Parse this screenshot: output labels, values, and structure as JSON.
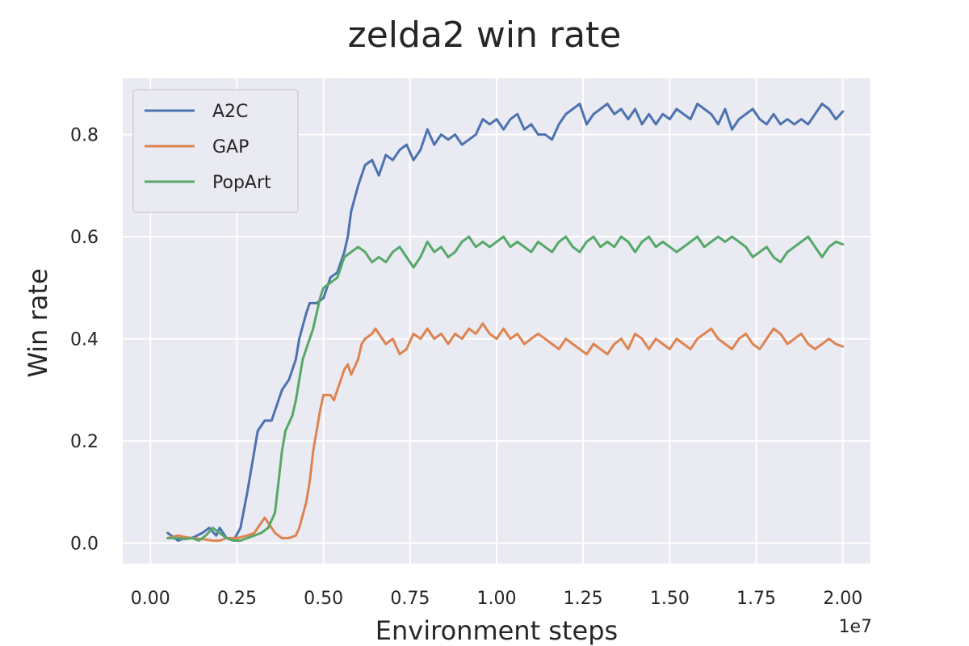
{
  "chart_data": {
    "type": "line",
    "title": "zelda2 win rate",
    "xlabel": "Environment steps",
    "ylabel": "Win rate",
    "x_offset_label": "1e7",
    "xlim": [
      -0.08,
      2.08
    ],
    "ylim": [
      -0.04,
      0.91
    ],
    "x_ticks": [
      0.0,
      0.25,
      0.5,
      0.75,
      1.0,
      1.25,
      1.5,
      1.75,
      2.0
    ],
    "x_tick_labels": [
      "0.00",
      "0.25",
      "0.50",
      "0.75",
      "1.00",
      "1.25",
      "1.50",
      "1.75",
      "2.00"
    ],
    "y_ticks": [
      0.0,
      0.2,
      0.4,
      0.6,
      0.8
    ],
    "y_tick_labels": [
      "0.0",
      "0.2",
      "0.4",
      "0.6",
      "0.8"
    ],
    "grid": true,
    "legend_position": "top-left",
    "background_color": "#eaeaf2",
    "series": [
      {
        "name": "A2C",
        "color": "#4c72b0",
        "points": [
          [
            0.05,
            0.02
          ],
          [
            0.08,
            0.005
          ],
          [
            0.1,
            0.01
          ],
          [
            0.12,
            0.01
          ],
          [
            0.15,
            0.02
          ],
          [
            0.17,
            0.03
          ],
          [
            0.19,
            0.015
          ],
          [
            0.2,
            0.03
          ],
          [
            0.22,
            0.01
          ],
          [
            0.24,
            0.005
          ],
          [
            0.26,
            0.03
          ],
          [
            0.28,
            0.1
          ],
          [
            0.3,
            0.18
          ],
          [
            0.31,
            0.22
          ],
          [
            0.33,
            0.24
          ],
          [
            0.35,
            0.24
          ],
          [
            0.37,
            0.28
          ],
          [
            0.38,
            0.3
          ],
          [
            0.4,
            0.32
          ],
          [
            0.42,
            0.36
          ],
          [
            0.43,
            0.4
          ],
          [
            0.45,
            0.45
          ],
          [
            0.46,
            0.47
          ],
          [
            0.48,
            0.47
          ],
          [
            0.5,
            0.48
          ],
          [
            0.51,
            0.5
          ],
          [
            0.52,
            0.52
          ],
          [
            0.54,
            0.53
          ],
          [
            0.55,
            0.55
          ],
          [
            0.56,
            0.57
          ],
          [
            0.57,
            0.6
          ],
          [
            0.58,
            0.65
          ],
          [
            0.6,
            0.7
          ],
          [
            0.62,
            0.74
          ],
          [
            0.64,
            0.75
          ],
          [
            0.66,
            0.72
          ],
          [
            0.68,
            0.76
          ],
          [
            0.7,
            0.75
          ],
          [
            0.72,
            0.77
          ],
          [
            0.74,
            0.78
          ],
          [
            0.76,
            0.75
          ],
          [
            0.78,
            0.77
          ],
          [
            0.8,
            0.81
          ],
          [
            0.82,
            0.78
          ],
          [
            0.84,
            0.8
          ],
          [
            0.86,
            0.79
          ],
          [
            0.88,
            0.8
          ],
          [
            0.9,
            0.78
          ],
          [
            0.92,
            0.79
          ],
          [
            0.94,
            0.8
          ],
          [
            0.96,
            0.83
          ],
          [
            0.98,
            0.82
          ],
          [
            1.0,
            0.83
          ],
          [
            1.02,
            0.81
          ],
          [
            1.04,
            0.83
          ],
          [
            1.06,
            0.84
          ],
          [
            1.08,
            0.81
          ],
          [
            1.1,
            0.82
          ],
          [
            1.12,
            0.8
          ],
          [
            1.14,
            0.8
          ],
          [
            1.16,
            0.79
          ],
          [
            1.18,
            0.82
          ],
          [
            1.2,
            0.84
          ],
          [
            1.22,
            0.85
          ],
          [
            1.24,
            0.86
          ],
          [
            1.26,
            0.82
          ],
          [
            1.28,
            0.84
          ],
          [
            1.3,
            0.85
          ],
          [
            1.32,
            0.86
          ],
          [
            1.34,
            0.84
          ],
          [
            1.36,
            0.85
          ],
          [
            1.38,
            0.83
          ],
          [
            1.4,
            0.85
          ],
          [
            1.42,
            0.82
          ],
          [
            1.44,
            0.84
          ],
          [
            1.46,
            0.82
          ],
          [
            1.48,
            0.84
          ],
          [
            1.5,
            0.83
          ],
          [
            1.52,
            0.85
          ],
          [
            1.54,
            0.84
          ],
          [
            1.56,
            0.83
          ],
          [
            1.58,
            0.86
          ],
          [
            1.6,
            0.85
          ],
          [
            1.62,
            0.84
          ],
          [
            1.64,
            0.82
          ],
          [
            1.66,
            0.85
          ],
          [
            1.68,
            0.81
          ],
          [
            1.7,
            0.83
          ],
          [
            1.72,
            0.84
          ],
          [
            1.74,
            0.85
          ],
          [
            1.76,
            0.83
          ],
          [
            1.78,
            0.82
          ],
          [
            1.8,
            0.84
          ],
          [
            1.82,
            0.82
          ],
          [
            1.84,
            0.83
          ],
          [
            1.86,
            0.82
          ],
          [
            1.88,
            0.83
          ],
          [
            1.9,
            0.82
          ],
          [
            1.92,
            0.84
          ],
          [
            1.94,
            0.86
          ],
          [
            1.96,
            0.85
          ],
          [
            1.98,
            0.83
          ],
          [
            2.0,
            0.845
          ]
        ]
      },
      {
        "name": "GAP",
        "color": "#dd8452",
        "points": [
          [
            0.05,
            0.01
          ],
          [
            0.08,
            0.015
          ],
          [
            0.1,
            0.012
          ],
          [
            0.12,
            0.01
          ],
          [
            0.15,
            0.008
          ],
          [
            0.18,
            0.005
          ],
          [
            0.2,
            0.005
          ],
          [
            0.22,
            0.01
          ],
          [
            0.25,
            0.01
          ],
          [
            0.28,
            0.015
          ],
          [
            0.3,
            0.02
          ],
          [
            0.32,
            0.04
          ],
          [
            0.33,
            0.05
          ],
          [
            0.34,
            0.04
          ],
          [
            0.36,
            0.02
          ],
          [
            0.38,
            0.01
          ],
          [
            0.4,
            0.01
          ],
          [
            0.42,
            0.015
          ],
          [
            0.43,
            0.03
          ],
          [
            0.45,
            0.08
          ],
          [
            0.46,
            0.12
          ],
          [
            0.47,
            0.18
          ],
          [
            0.48,
            0.22
          ],
          [
            0.49,
            0.26
          ],
          [
            0.5,
            0.29
          ],
          [
            0.52,
            0.29
          ],
          [
            0.53,
            0.28
          ],
          [
            0.54,
            0.3
          ],
          [
            0.56,
            0.34
          ],
          [
            0.57,
            0.35
          ],
          [
            0.58,
            0.33
          ],
          [
            0.6,
            0.36
          ],
          [
            0.61,
            0.39
          ],
          [
            0.62,
            0.4
          ],
          [
            0.64,
            0.41
          ],
          [
            0.65,
            0.42
          ],
          [
            0.66,
            0.41
          ],
          [
            0.68,
            0.39
          ],
          [
            0.7,
            0.4
          ],
          [
            0.72,
            0.37
          ],
          [
            0.74,
            0.38
          ],
          [
            0.76,
            0.41
          ],
          [
            0.78,
            0.4
          ],
          [
            0.8,
            0.42
          ],
          [
            0.82,
            0.4
          ],
          [
            0.84,
            0.41
          ],
          [
            0.86,
            0.39
          ],
          [
            0.88,
            0.41
          ],
          [
            0.9,
            0.4
          ],
          [
            0.92,
            0.42
          ],
          [
            0.94,
            0.41
          ],
          [
            0.96,
            0.43
          ],
          [
            0.98,
            0.41
          ],
          [
            1.0,
            0.4
          ],
          [
            1.02,
            0.42
          ],
          [
            1.04,
            0.4
          ],
          [
            1.06,
            0.41
          ],
          [
            1.08,
            0.39
          ],
          [
            1.1,
            0.4
          ],
          [
            1.12,
            0.41
          ],
          [
            1.14,
            0.4
          ],
          [
            1.16,
            0.39
          ],
          [
            1.18,
            0.38
          ],
          [
            1.2,
            0.4
          ],
          [
            1.22,
            0.39
          ],
          [
            1.24,
            0.38
          ],
          [
            1.26,
            0.37
          ],
          [
            1.28,
            0.39
          ],
          [
            1.3,
            0.38
          ],
          [
            1.32,
            0.37
          ],
          [
            1.34,
            0.39
          ],
          [
            1.36,
            0.4
          ],
          [
            1.38,
            0.38
          ],
          [
            1.4,
            0.41
          ],
          [
            1.42,
            0.4
          ],
          [
            1.44,
            0.38
          ],
          [
            1.46,
            0.4
          ],
          [
            1.48,
            0.39
          ],
          [
            1.5,
            0.38
          ],
          [
            1.52,
            0.4
          ],
          [
            1.54,
            0.39
          ],
          [
            1.56,
            0.38
          ],
          [
            1.58,
            0.4
          ],
          [
            1.6,
            0.41
          ],
          [
            1.62,
            0.42
          ],
          [
            1.64,
            0.4
          ],
          [
            1.66,
            0.39
          ],
          [
            1.68,
            0.38
          ],
          [
            1.7,
            0.4
          ],
          [
            1.72,
            0.41
          ],
          [
            1.74,
            0.39
          ],
          [
            1.76,
            0.38
          ],
          [
            1.78,
            0.4
          ],
          [
            1.8,
            0.42
          ],
          [
            1.82,
            0.41
          ],
          [
            1.84,
            0.39
          ],
          [
            1.86,
            0.4
          ],
          [
            1.88,
            0.41
          ],
          [
            1.9,
            0.39
          ],
          [
            1.92,
            0.38
          ],
          [
            1.94,
            0.39
          ],
          [
            1.96,
            0.4
          ],
          [
            1.98,
            0.39
          ],
          [
            2.0,
            0.385
          ]
        ]
      },
      {
        "name": "PopArt",
        "color": "#55a868",
        "points": [
          [
            0.05,
            0.01
          ],
          [
            0.08,
            0.01
          ],
          [
            0.1,
            0.008
          ],
          [
            0.12,
            0.01
          ],
          [
            0.14,
            0.005
          ],
          [
            0.16,
            0.015
          ],
          [
            0.18,
            0.03
          ],
          [
            0.2,
            0.02
          ],
          [
            0.22,
            0.01
          ],
          [
            0.24,
            0.005
          ],
          [
            0.26,
            0.005
          ],
          [
            0.28,
            0.01
          ],
          [
            0.3,
            0.015
          ],
          [
            0.32,
            0.02
          ],
          [
            0.34,
            0.03
          ],
          [
            0.36,
            0.06
          ],
          [
            0.37,
            0.12
          ],
          [
            0.38,
            0.18
          ],
          [
            0.39,
            0.22
          ],
          [
            0.41,
            0.25
          ],
          [
            0.42,
            0.28
          ],
          [
            0.43,
            0.32
          ],
          [
            0.44,
            0.36
          ],
          [
            0.45,
            0.38
          ],
          [
            0.46,
            0.4
          ],
          [
            0.47,
            0.42
          ],
          [
            0.48,
            0.45
          ],
          [
            0.49,
            0.48
          ],
          [
            0.5,
            0.5
          ],
          [
            0.52,
            0.51
          ],
          [
            0.54,
            0.52
          ],
          [
            0.55,
            0.54
          ],
          [
            0.56,
            0.56
          ],
          [
            0.58,
            0.57
          ],
          [
            0.6,
            0.58
          ],
          [
            0.62,
            0.57
          ],
          [
            0.64,
            0.55
          ],
          [
            0.66,
            0.56
          ],
          [
            0.68,
            0.55
          ],
          [
            0.7,
            0.57
          ],
          [
            0.72,
            0.58
          ],
          [
            0.74,
            0.56
          ],
          [
            0.76,
            0.54
          ],
          [
            0.78,
            0.56
          ],
          [
            0.8,
            0.59
          ],
          [
            0.82,
            0.57
          ],
          [
            0.84,
            0.58
          ],
          [
            0.86,
            0.56
          ],
          [
            0.88,
            0.57
          ],
          [
            0.9,
            0.59
          ],
          [
            0.92,
            0.6
          ],
          [
            0.94,
            0.58
          ],
          [
            0.96,
            0.59
          ],
          [
            0.98,
            0.58
          ],
          [
            1.0,
            0.59
          ],
          [
            1.02,
            0.6
          ],
          [
            1.04,
            0.58
          ],
          [
            1.06,
            0.59
          ],
          [
            1.08,
            0.58
          ],
          [
            1.1,
            0.57
          ],
          [
            1.12,
            0.59
          ],
          [
            1.14,
            0.58
          ],
          [
            1.16,
            0.57
          ],
          [
            1.18,
            0.59
          ],
          [
            1.2,
            0.6
          ],
          [
            1.22,
            0.58
          ],
          [
            1.24,
            0.57
          ],
          [
            1.26,
            0.59
          ],
          [
            1.28,
            0.6
          ],
          [
            1.3,
            0.58
          ],
          [
            1.32,
            0.59
          ],
          [
            1.34,
            0.58
          ],
          [
            1.36,
            0.6
          ],
          [
            1.38,
            0.59
          ],
          [
            1.4,
            0.57
          ],
          [
            1.42,
            0.59
          ],
          [
            1.44,
            0.6
          ],
          [
            1.46,
            0.58
          ],
          [
            1.48,
            0.59
          ],
          [
            1.5,
            0.58
          ],
          [
            1.52,
            0.57
          ],
          [
            1.54,
            0.58
          ],
          [
            1.56,
            0.59
          ],
          [
            1.58,
            0.6
          ],
          [
            1.6,
            0.58
          ],
          [
            1.62,
            0.59
          ],
          [
            1.64,
            0.6
          ],
          [
            1.66,
            0.59
          ],
          [
            1.68,
            0.6
          ],
          [
            1.7,
            0.59
          ],
          [
            1.72,
            0.58
          ],
          [
            1.74,
            0.56
          ],
          [
            1.76,
            0.57
          ],
          [
            1.78,
            0.58
          ],
          [
            1.8,
            0.56
          ],
          [
            1.82,
            0.55
          ],
          [
            1.84,
            0.57
          ],
          [
            1.86,
            0.58
          ],
          [
            1.88,
            0.59
          ],
          [
            1.9,
            0.6
          ],
          [
            1.92,
            0.58
          ],
          [
            1.94,
            0.56
          ],
          [
            1.96,
            0.58
          ],
          [
            1.98,
            0.59
          ],
          [
            2.0,
            0.585
          ]
        ]
      }
    ]
  }
}
